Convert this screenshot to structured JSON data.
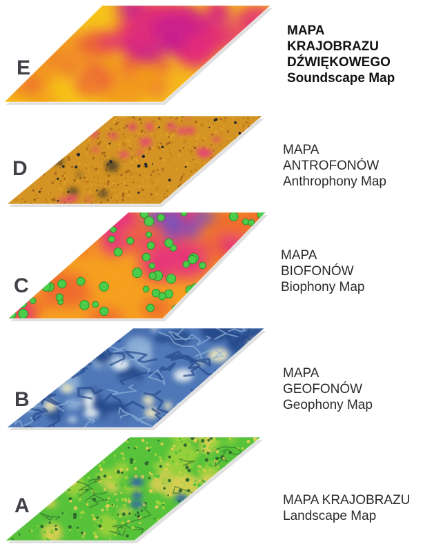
{
  "layers": [
    {
      "letter": "E",
      "lines": [
        "MAPA",
        "KRAJOBRAZU",
        "DŹWIĘKOWEGO",
        "Soundscape Map"
      ],
      "bold": true,
      "palette": [
        "#f6c21a",
        "#f29a1c",
        "#ec5f3a",
        "#e22b78",
        "#c81e8e"
      ],
      "texture": "soundscape-heat-map"
    },
    {
      "letter": "D",
      "lines": [
        "MAPA",
        "ANTROFONÓW",
        "Anthrophony Map"
      ],
      "bold": false,
      "palette": [
        "#e1a227",
        "#c8851f",
        "#a86a1a",
        "#e8407a",
        "#2b2b2b"
      ],
      "texture": "anthrophony-speckle-map"
    },
    {
      "letter": "C",
      "lines": [
        "MAPA",
        "BIOFONÓW",
        "Biophony Map"
      ],
      "bold": false,
      "palette": [
        "#f5a020",
        "#ef6a2e",
        "#e6357a",
        "#5a5ad0",
        "#4ccd4a"
      ],
      "texture": "biophony-heat-map-with-green-spots"
    },
    {
      "letter": "B",
      "lines": [
        "MAPA",
        "GEOFONÓW",
        "Geophony Map"
      ],
      "bold": false,
      "palette": [
        "#274a8c",
        "#4f78b8",
        "#8fb1d8",
        "#e6eef2",
        "#f3eabf"
      ],
      "texture": "geophony-blue-relief-map"
    },
    {
      "letter": "A",
      "lines": [
        "MAPA KRAJOBRAZU",
        "Landscape Map"
      ],
      "bold": false,
      "palette": [
        "#56c23a",
        "#9bd23b",
        "#d8cf52",
        "#2f6b2c",
        "#2a58b8"
      ],
      "texture": "landscape-land-cover-map"
    }
  ]
}
